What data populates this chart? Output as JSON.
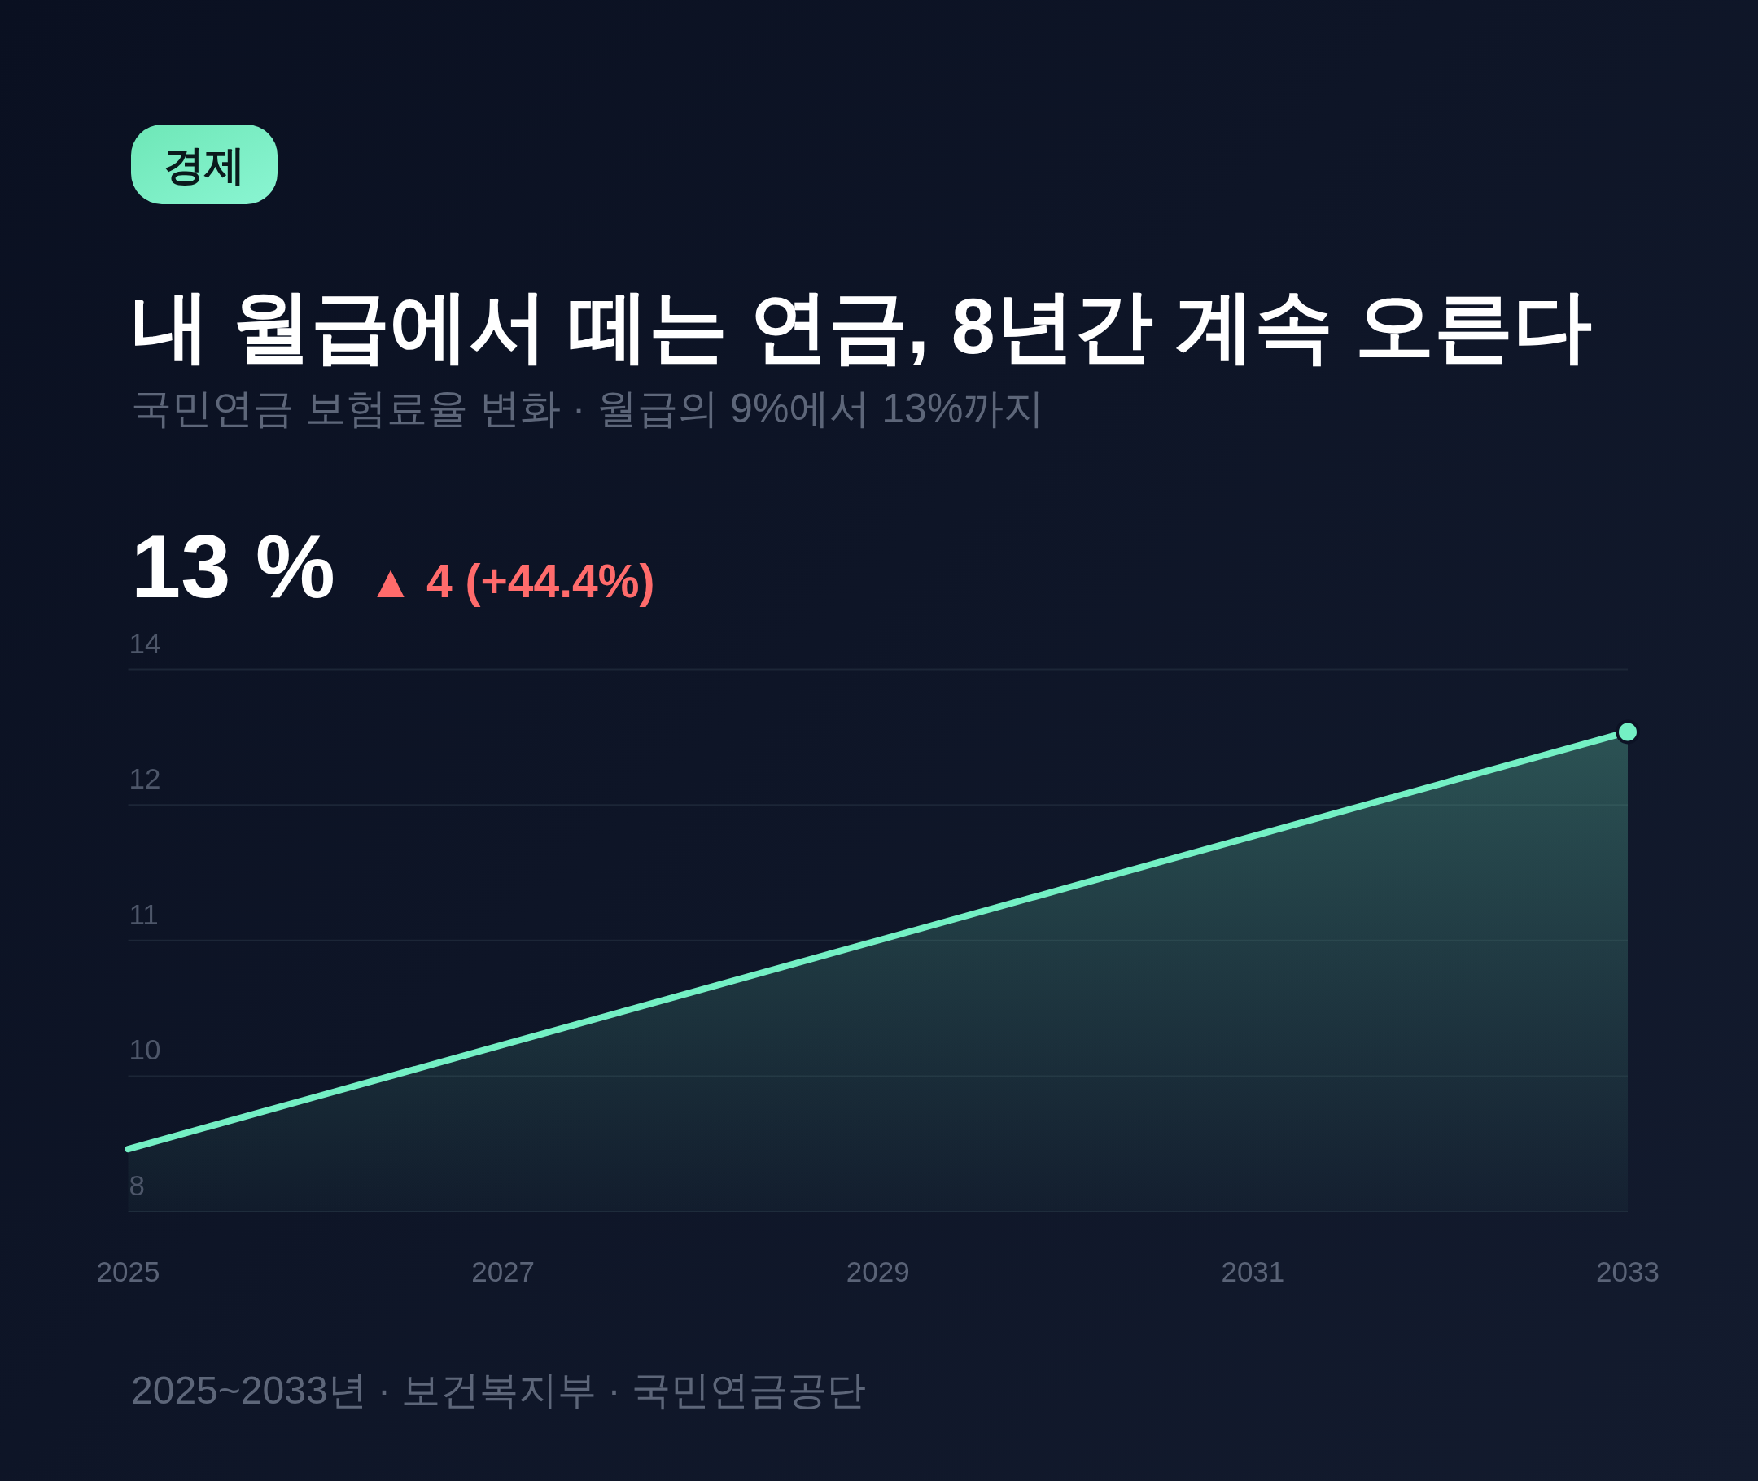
{
  "chart_data": {
    "type": "area",
    "title": "내 월급에서 떼는 연금, 8년간 계속 오른다",
    "subtitle": "국민연금 보험료율 변화 · 월급의 9%에서 13%까지",
    "annotations": [
      "경제",
      "13 %",
      "▲ 4 (+44.4%)",
      "2025~2033년 · 보건복지부 · 국민연금공단"
    ],
    "x": [
      2025,
      2026,
      2027,
      2028,
      2029,
      2030,
      2031,
      2032,
      2033
    ],
    "series": [
      {
        "color": "#74f0c4",
        "values": [
          9,
          9.5,
          10,
          10.5,
          11,
          11.5,
          12,
          12.5,
          13
        ]
      },
      {
        "type": "scatter",
        "color": "#74f0c4",
        "x": [
          2033
        ],
        "values": [
          13
        ],
        "marker": "circle"
      }
    ],
    "xlim": [
      2025,
      2033
    ],
    "xticks": [
      2025,
      2027,
      2029,
      2031,
      2033
    ],
    "ylim": [
      8.4,
      13.6
    ],
    "yticks": [
      {
        "value": 8.4,
        "label": "8"
      },
      {
        "value": 9.7,
        "label": "10"
      },
      11,
      {
        "value": 12.3,
        "label": "12"
      },
      {
        "value": 13.6,
        "label": "14"
      }
    ],
    "grid": "y"
  }
}
